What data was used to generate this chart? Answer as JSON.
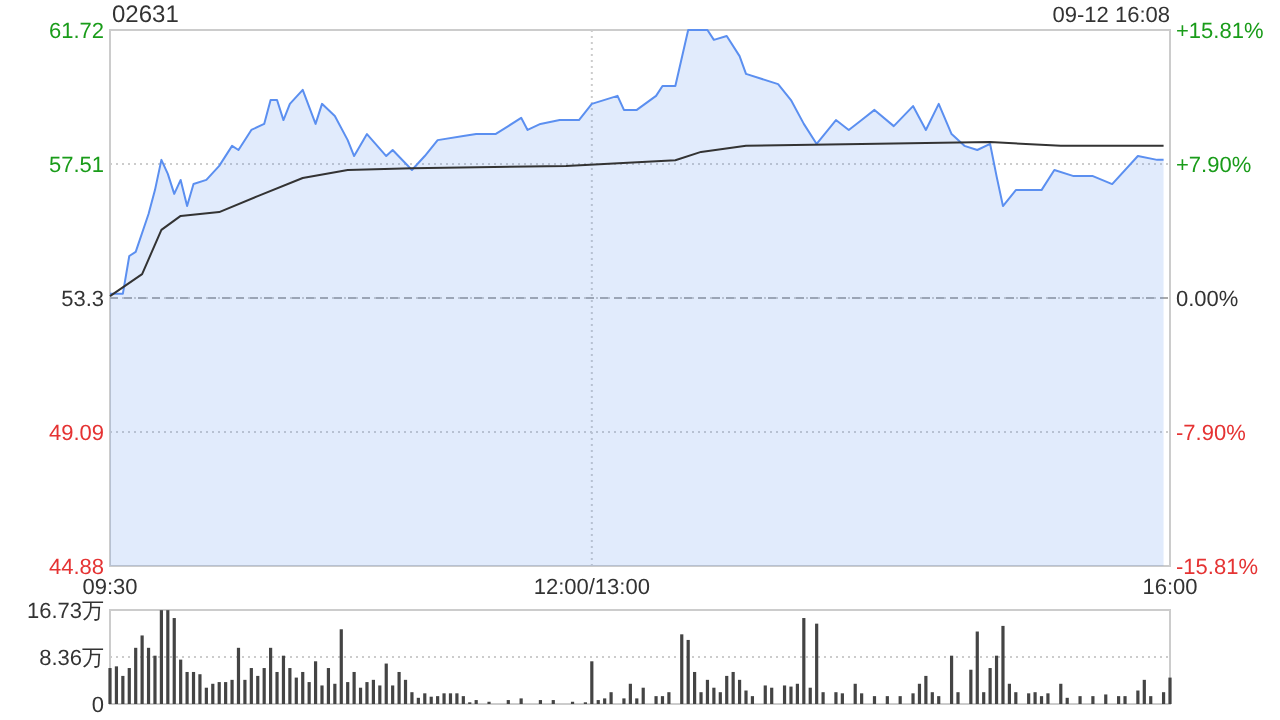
{
  "chart_data": [
    {
      "type": "line",
      "title": "02631",
      "annotations": [
        "09-12 16:08"
      ],
      "categories": [
        "09:30",
        null,
        null,
        null,
        null,
        null,
        null,
        null,
        null,
        null,
        null,
        null,
        null,
        null,
        null,
        null,
        null,
        null,
        null,
        null,
        null,
        null,
        null,
        null,
        null,
        null,
        null,
        null,
        null,
        null,
        null,
        null,
        null,
        null,
        null,
        null,
        null,
        null,
        null,
        null,
        null,
        null,
        null,
        null,
        null,
        null,
        null,
        null,
        null,
        null,
        null,
        null,
        null,
        null,
        null,
        null,
        null,
        null,
        null,
        null,
        null,
        null,
        null,
        null,
        null,
        null,
        null,
        null,
        null,
        null,
        null,
        null,
        null,
        null,
        null,
        "12:00/13:00",
        null,
        null,
        null,
        null,
        null,
        null,
        null,
        null,
        null,
        null,
        null,
        null,
        null,
        null,
        null,
        null,
        null,
        null,
        null,
        null,
        null,
        null,
        null,
        null,
        null,
        null,
        null,
        null,
        null,
        null,
        null,
        null,
        null,
        null,
        null,
        null,
        null,
        null,
        null,
        null,
        null,
        null,
        null,
        null,
        null,
        null,
        null,
        null,
        null,
        null,
        null,
        null,
        null,
        null,
        null,
        null,
        null,
        null,
        null,
        null,
        null,
        null,
        null,
        null,
        null,
        null,
        null,
        null,
        null,
        null,
        null,
        null,
        null,
        null,
        null,
        null,
        null,
        null,
        null,
        null,
        null,
        null,
        null,
        null,
        null,
        null,
        null,
        null,
        null,
        "16:00"
      ],
      "ylim": [
        44.88,
        61.72
      ],
      "yticks": [
        44.88,
        49.09,
        53.3,
        57.51,
        61.72
      ],
      "y2lim": [
        -15.81,
        15.81
      ],
      "y2ticks": [
        {
          "value": -15.81,
          "label": "-15.81%"
        },
        {
          "value": -7.9,
          "label": "-7.90%"
        },
        {
          "value": 0,
          "label": "0.00%"
        },
        {
          "value": 7.9,
          "label": "+7.90%"
        },
        {
          "value": 15.81,
          "label": "+15.81%"
        }
      ],
      "grid": true,
      "ref_lines": [
        {
          "axis": "y",
          "value": 53.3,
          "label": null,
          "color": "#aaaaaa",
          "line_style": "dashed"
        }
      ],
      "series": [
        {
          "type": "area",
          "color": "#5b8ff0",
          "values": [
            53.43,
            null,
            53.43,
            54.62,
            54.75,
            null,
            55.94,
            56.69,
            57.64,
            57.2,
            56.57,
            57.01,
            56.19,
            56.88,
            null,
            57.01,
            null,
            57.45,
            null,
            58.08,
            57.95,
            null,
            58.58,
            null,
            58.77,
            59.52,
            59.52,
            58.89,
            59.4,
            null,
            59.84,
            null,
            58.77,
            59.4,
            null,
            59.02,
            null,
            58.26,
            57.76,
            null,
            58.45,
            null,
            null,
            57.76,
            57.95,
            null,
            null,
            57.32,
            null,
            57.76,
            null,
            58.26,
            null,
            null,
            null,
            58.39,
            null,
            58.45,
            null,
            null,
            58.45,
            null,
            58.7,
            null,
            58.96,
            58.58,
            null,
            58.77,
            null,
            null,
            58.89,
            null,
            null,
            58.89,
            null,
            59.4,
            null,
            null,
            null,
            59.65,
            59.21,
            null,
            59.21,
            null,
            null,
            59.65,
            59.96,
            null,
            59.96,
            null,
            61.72,
            null,
            null,
            61.72,
            61.41,
            null,
            61.53,
            null,
            60.9,
            60.34,
            null,
            null,
            null,
            null,
            60.02,
            null,
            59.52,
            null,
            58.77,
            null,
            58.14,
            null,
            null,
            58.89,
            null,
            58.58,
            null,
            58.89,
            null,
            59.21,
            null,
            null,
            58.7,
            null,
            null,
            59.33,
            null,
            58.58,
            null,
            59.4,
            null,
            58.45,
            null,
            58.08,
            null,
            57.95,
            null,
            58.14,
            57.13,
            56.19,
            null,
            56.69,
            null,
            null,
            null,
            56.69,
            null,
            57.32,
            null,
            null,
            57.13,
            null,
            null,
            57.13,
            null,
            null,
            56.88,
            null,
            null,
            null,
            57.76,
            null,
            null,
            57.64,
            57.64,
            null
          ]
        },
        {
          "color": "#333333",
          "values": [
            53.36,
            null,
            null,
            null,
            null,
            54.05,
            null,
            null,
            55.44,
            null,
            null,
            55.88,
            null,
            null,
            null,
            null,
            null,
            56.0,
            null,
            null,
            null,
            null,
            null,
            56.5,
            null,
            null,
            null,
            null,
            null,
            null,
            57.07,
            null,
            null,
            null,
            null,
            null,
            null,
            57.32,
            null,
            null,
            null,
            null,
            null,
            null,
            null,
            null,
            null,
            57.38,
            null,
            null,
            null,
            null,
            null,
            null,
            null,
            null,
            null,
            null,
            null,
            null,
            null,
            null,
            null,
            null,
            null,
            null,
            null,
            null,
            null,
            null,
            null,
            57.45,
            null,
            null,
            null,
            null,
            null,
            null,
            null,
            null,
            null,
            null,
            null,
            null,
            null,
            null,
            null,
            null,
            57.63,
            null,
            null,
            null,
            57.89,
            null,
            null,
            null,
            null,
            null,
            null,
            58.08,
            null,
            null,
            null,
            null,
            null,
            null,
            null,
            null,
            null,
            null,
            null,
            null,
            null,
            null,
            null,
            null,
            null,
            58.14,
            null,
            null,
            null,
            null,
            null,
            null,
            null,
            null,
            null,
            null,
            null,
            null,
            null,
            null,
            null,
            null,
            null,
            null,
            null,
            58.2,
            null,
            null,
            null,
            null,
            null,
            null,
            null,
            null,
            null,
            null,
            58.08,
            null,
            null,
            null,
            null,
            null,
            null,
            null,
            null,
            null,
            null,
            null,
            null,
            null,
            null,
            null,
            58.08,
            null
          ]
        }
      ]
    },
    {
      "type": "bar",
      "categories": [
        null,
        null,
        null,
        null,
        null,
        null,
        null,
        null,
        null,
        null,
        null,
        null,
        null,
        null,
        null,
        null,
        null,
        null,
        null,
        null,
        null,
        null,
        null,
        null,
        null,
        null,
        null,
        null,
        null,
        null,
        null,
        null,
        null,
        null,
        null,
        null,
        null,
        null,
        null,
        null,
        null,
        null,
        null,
        null,
        null,
        null,
        null,
        null,
        null,
        null,
        null,
        null,
        null,
        null,
        null,
        null,
        null,
        null,
        null,
        null,
        null,
        null,
        null,
        null,
        null,
        null,
        null,
        null,
        null,
        null,
        null,
        null,
        null,
        null,
        null,
        null,
        null,
        null,
        null,
        null,
        null,
        null,
        null,
        null,
        null,
        null,
        null,
        null,
        null,
        null,
        null,
        null,
        null,
        null,
        null,
        null,
        null,
        null,
        null,
        null,
        null,
        null,
        null,
        null,
        null,
        null,
        null,
        null,
        null,
        null,
        null,
        null,
        null,
        null,
        null,
        null,
        null,
        null,
        null,
        null,
        null,
        null,
        null,
        null,
        null,
        null,
        null,
        null,
        null,
        null,
        null,
        null,
        null,
        null,
        null,
        null,
        null,
        null,
        null,
        null,
        null,
        null,
        null,
        null,
        null,
        null,
        null,
        null,
        null,
        null,
        null,
        null,
        null,
        null,
        null,
        null,
        null,
        null,
        null,
        null,
        null,
        null,
        null,
        null,
        null,
        null
      ],
      "ylim": [
        0,
        16.73
      ],
      "yticks": [
        0,
        {
          "value": 8.36,
          "label": "8.36万"
        },
        {
          "value": 16.73,
          "label": "16.73万"
        }
      ],
      "grid": "y",
      "tick_labels": "y",
      "series": [
        {
          "color": "#444444",
          "values": [
            6.4,
            6.7,
            5.0,
            6.4,
            10.0,
            12.2,
            10.0,
            8.6,
            16.7,
            16.7,
            15.3,
            7.9,
            5.7,
            5.7,
            5.3,
            2.9,
            3.6,
            3.9,
            3.9,
            4.3,
            10.0,
            4.3,
            6.4,
            5.0,
            6.4,
            10.0,
            5.7,
            8.6,
            6.4,
            4.7,
            5.7,
            3.9,
            7.6,
            3.3,
            6.4,
            3.6,
            13.3,
            3.9,
            5.7,
            2.9,
            3.9,
            4.3,
            3.3,
            7.2,
            3.3,
            5.7,
            4.3,
            2.1,
            1.1,
            1.9,
            1.3,
            1.4,
            1.9,
            1.9,
            1.9,
            1.4,
            0.3,
            0.7,
            null,
            0.4,
            null,
            null,
            0.7,
            null,
            1.0,
            null,
            null,
            0.7,
            null,
            0.7,
            null,
            null,
            0.4,
            null,
            0.3,
            7.6,
            0.7,
            1.0,
            2.1,
            null,
            1.0,
            3.6,
            1.0,
            2.9,
            null,
            1.4,
            1.4,
            2.1,
            null,
            12.4,
            11.4,
            5.7,
            2.1,
            4.3,
            2.9,
            2.1,
            5.0,
            5.7,
            4.3,
            2.4,
            1.4,
            null,
            3.3,
            2.9,
            null,
            3.3,
            3.1,
            3.6,
            15.3,
            2.9,
            14.3,
            2.1,
            null,
            2.1,
            1.9,
            null,
            3.6,
            1.9,
            null,
            1.4,
            null,
            1.4,
            null,
            1.4,
            null,
            1.9,
            3.6,
            5.0,
            2.1,
            1.4,
            null,
            8.6,
            2.1,
            null,
            6.1,
            12.9,
            2.1,
            6.4,
            8.6,
            13.9,
            3.6,
            2.1,
            null,
            1.9,
            2.1,
            1.4,
            1.9,
            null,
            3.6,
            1.1,
            null,
            1.4,
            null,
            1.4,
            null,
            1.7,
            null,
            1.4,
            1.4,
            null,
            2.4,
            4.3,
            1.4,
            null,
            2.1,
            4.7
          ]
        }
      ]
    }
  ]
}
